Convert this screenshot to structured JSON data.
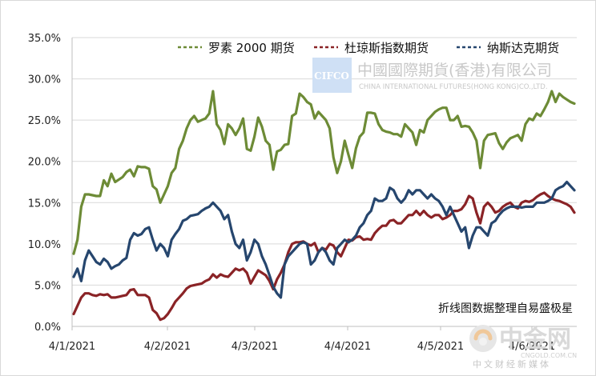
{
  "chart_data": {
    "type": "line",
    "title": "",
    "xlabel": "",
    "ylabel": "",
    "ylim": [
      0,
      35
    ],
    "y_ticks": [
      "0.0%",
      "5.0%",
      "10.0%",
      "15.0%",
      "20.0%",
      "25.0%",
      "30.0%",
      "35.0%"
    ],
    "x_ticks": [
      "4/1/2021",
      "4/2/2021",
      "4/3/2021",
      "4/4/2021",
      "4/5/2021",
      "4/6/2021"
    ],
    "grid": "horizontal",
    "legend_position": "top-right",
    "note": "折线图数据整理自易盛极星",
    "series": [
      {
        "name": "罗素 2000 期货",
        "color": "#6d8b36",
        "values": [
          8.8,
          10.5,
          14.5,
          16.0,
          16.0,
          15.9,
          15.8,
          15.8,
          17.7,
          17.0,
          18.5,
          17.5,
          17.8,
          18.1,
          18.7,
          19.0,
          18.2,
          19.4,
          19.3,
          19.3,
          19.1,
          17.0,
          16.6,
          15.0,
          16.0,
          17.0,
          18.6,
          19.2,
          21.5,
          22.5,
          24.0,
          25.0,
          25.5,
          24.8,
          25.0,
          25.2,
          25.8,
          28.5,
          24.5,
          23.8,
          22.1,
          24.5,
          24.0,
          23.2,
          24.0,
          25.2,
          21.5,
          21.3,
          23.0,
          25.3,
          24.2,
          22.5,
          22.0,
          19.0,
          21.2,
          21.4,
          22.0,
          22.1,
          25.5,
          25.8,
          28.2,
          27.8,
          27.2,
          26.9,
          25.2,
          26.0,
          25.5,
          25.0,
          24.0,
          20.5,
          18.6,
          20.0,
          22.5,
          20.8,
          19.2,
          21.6,
          23.0,
          23.5,
          25.9,
          25.9,
          25.8,
          24.5,
          23.8,
          23.6,
          23.5,
          23.3,
          23.3,
          23.0,
          24.5,
          24.0,
          23.5,
          22.0,
          23.8,
          23.5,
          25.0,
          25.5,
          26.0,
          26.3,
          26.5,
          26.5,
          25.0,
          25.0,
          25.5,
          24.2,
          24.3,
          24.2,
          23.5,
          22.5,
          19.2,
          22.5,
          23.2,
          23.3,
          23.4,
          22.2,
          21.5,
          22.3,
          22.8,
          23.0,
          23.2,
          22.5,
          24.5,
          25.2,
          25.0,
          25.8,
          25.5,
          26.3,
          27.2,
          28.5,
          27.2,
          28.2,
          27.8,
          27.5,
          27.2,
          27.0
        ]
      },
      {
        "name": "杜琼斯指数期货",
        "color": "#8a2326",
        "values": [
          1.5,
          2.5,
          3.5,
          4.0,
          4.0,
          3.8,
          3.7,
          3.9,
          3.8,
          3.9,
          3.5,
          3.5,
          3.6,
          3.7,
          3.8,
          4.4,
          4.5,
          3.8,
          3.8,
          3.8,
          3.5,
          2.0,
          1.6,
          0.8,
          1.0,
          1.5,
          2.2,
          3.0,
          3.5,
          4.0,
          4.6,
          4.9,
          5.0,
          5.1,
          5.2,
          5.5,
          5.7,
          6.3,
          5.9,
          6.3,
          6.1,
          6.0,
          6.5,
          7.0,
          6.8,
          7.0,
          6.5,
          5.2,
          6.0,
          6.8,
          6.5,
          6.2,
          5.5,
          4.5,
          5.7,
          6.5,
          7.5,
          9.0,
          10.0,
          10.2,
          10.2,
          10.3,
          10.0,
          9.8,
          10.1,
          9.0,
          9.5,
          9.3,
          10.0,
          9.8,
          9.0,
          8.5,
          9.5,
          10.5,
          10.4,
          10.8,
          10.9,
          10.5,
          10.6,
          10.5,
          11.3,
          11.8,
          12.2,
          12.2,
          12.8,
          12.9,
          12.5,
          12.5,
          13.0,
          13.5,
          13.5,
          14.0,
          13.5,
          14.0,
          13.5,
          13.2,
          13.5,
          13.5,
          13.0,
          13.2,
          13.5,
          14.0,
          14.0,
          14.2,
          14.8,
          15.8,
          15.5,
          13.8,
          12.5,
          14.5,
          15.0,
          14.5,
          13.8,
          14.0,
          14.5,
          14.8,
          15.0,
          14.5,
          14.3,
          15.0,
          15.2,
          15.1,
          15.3,
          15.7,
          16.0,
          16.2,
          15.8,
          15.5,
          15.3,
          15.2,
          15.0,
          14.8,
          14.5,
          13.8
        ]
      },
      {
        "name": "纳斯达克期货",
        "color": "#26466e",
        "values": [
          6.0,
          7.0,
          5.5,
          8.0,
          9.2,
          8.5,
          7.8,
          7.5,
          8.2,
          7.8,
          7.0,
          7.3,
          7.5,
          8.0,
          8.3,
          10.5,
          11.3,
          11.0,
          11.2,
          11.8,
          12.0,
          10.5,
          9.2,
          10.0,
          9.5,
          8.5,
          10.5,
          11.2,
          11.8,
          12.8,
          13.0,
          13.4,
          13.5,
          13.6,
          14.0,
          14.3,
          14.5,
          15.0,
          14.5,
          14.0,
          13.0,
          13.5,
          11.5,
          10.0,
          9.5,
          10.5,
          8.0,
          9.0,
          10.5,
          10.0,
          8.5,
          7.5,
          6.2,
          4.8,
          4.0,
          3.5,
          7.5,
          8.5,
          9.0,
          9.5,
          10.0,
          10.2,
          10.0,
          7.5,
          8.0,
          9.0,
          9.5,
          9.0,
          8.0,
          7.5,
          9.5,
          10.0,
          10.5,
          10.2,
          10.5,
          11.0,
          12.0,
          12.5,
          13.5,
          14.0,
          15.5,
          15.2,
          15.2,
          15.5,
          16.8,
          16.5,
          15.5,
          15.0,
          15.5,
          16.5,
          16.0,
          16.5,
          16.5,
          16.0,
          15.5,
          16.0,
          15.5,
          15.2,
          14.5,
          13.5,
          14.5,
          13.5,
          12.5,
          11.5,
          12.0,
          9.5,
          11.0,
          12.0,
          12.0,
          11.5,
          11.0,
          12.5,
          12.8,
          13.5,
          14.0,
          14.3,
          14.5,
          14.5,
          14.5,
          14.4,
          14.5,
          14.5,
          14.5,
          15.0,
          15.0,
          15.0,
          15.2,
          15.5,
          16.5,
          16.8,
          17.0,
          17.5,
          17.0,
          16.5
        ]
      }
    ]
  },
  "watermark": {
    "box_text": "CIFCO",
    "name_cn": "中國國際期貨(香港)有限公司",
    "name_en": "CHINA INTERNATIONAL FUTURES(HONG KONG)CO.,LTD."
  },
  "logo": {
    "text": "中金网",
    "url": "CNGOLD.COM.CN",
    "subtitle": "中文财经新媒体"
  }
}
